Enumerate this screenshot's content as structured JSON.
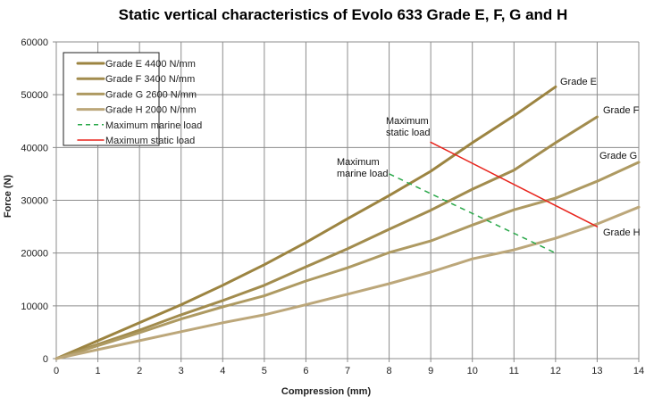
{
  "chart_data": {
    "type": "line",
    "title": "Static vertical characteristics of Evolo 633 Grade E, F, G and H",
    "xlabel": "Compression (mm)",
    "ylabel": "Force (N)",
    "xlim": [
      0,
      14
    ],
    "ylim": [
      0,
      60000
    ],
    "x_ticks": [
      "0",
      "1",
      "2",
      "3",
      "4",
      "5",
      "6",
      "7",
      "8",
      "9",
      "10",
      "11",
      "12",
      "13",
      "14"
    ],
    "y_ticks": [
      "0",
      "10000",
      "20000",
      "30000",
      "40000",
      "50000",
      "60000"
    ],
    "grid": true,
    "legend_position": "top-left",
    "series": [
      {
        "name": "Grade E 4400 N/mm",
        "label": "Grade E",
        "color": "#9c8441",
        "width": 3,
        "dash": "",
        "x": [
          0,
          1,
          2,
          3,
          4,
          5,
          6,
          7,
          8,
          9,
          10,
          11,
          12
        ],
        "y": [
          0,
          3400,
          6800,
          10200,
          13900,
          17800,
          22000,
          26500,
          30900,
          35500,
          40900,
          46000,
          51500
        ]
      },
      {
        "name": "Grade F 3400 N/mm",
        "label": "Grade F",
        "color": "#a28c4e",
        "width": 3,
        "dash": "",
        "x": [
          0,
          1,
          2,
          3,
          4,
          5,
          6,
          7,
          8,
          9,
          10,
          11,
          12,
          13
        ],
        "y": [
          0,
          2700,
          5400,
          8300,
          11000,
          13900,
          17400,
          20800,
          24500,
          28100,
          32100,
          35700,
          40900,
          45800
        ]
      },
      {
        "name": "Grade G 2600 N/mm",
        "label": "Grade G",
        "color": "#ae9a62",
        "width": 3,
        "dash": "",
        "x": [
          0,
          1,
          2,
          3,
          4,
          5,
          6,
          7,
          8,
          9,
          10,
          11,
          12,
          13,
          14
        ],
        "y": [
          0,
          2450,
          4900,
          7500,
          9800,
          11900,
          14700,
          17200,
          20100,
          22300,
          25300,
          28200,
          30400,
          33600,
          37200
        ]
      },
      {
        "name": "Grade H 2000 N/mm",
        "label": "Grade H",
        "color": "#bca77a",
        "width": 3,
        "dash": "",
        "x": [
          0,
          1,
          2,
          3,
          4,
          5,
          6,
          7,
          8,
          9,
          10,
          11,
          12,
          13,
          14
        ],
        "y": [
          0,
          1700,
          3400,
          5100,
          6800,
          8300,
          10200,
          12200,
          14200,
          16400,
          18900,
          20600,
          22800,
          25500,
          28700
        ]
      },
      {
        "name": "Maximum marine load",
        "label": "Maximum marine load",
        "color": "#2aa84a",
        "width": 1.5,
        "dash": "6,5",
        "x": [
          8,
          12
        ],
        "y": [
          35000,
          20000
        ]
      },
      {
        "name": "Maximum static load",
        "label": "Maximum static load",
        "color": "#e8231b",
        "width": 1.5,
        "dash": "",
        "x": [
          9,
          13
        ],
        "y": [
          41000,
          25000
        ]
      }
    ]
  }
}
